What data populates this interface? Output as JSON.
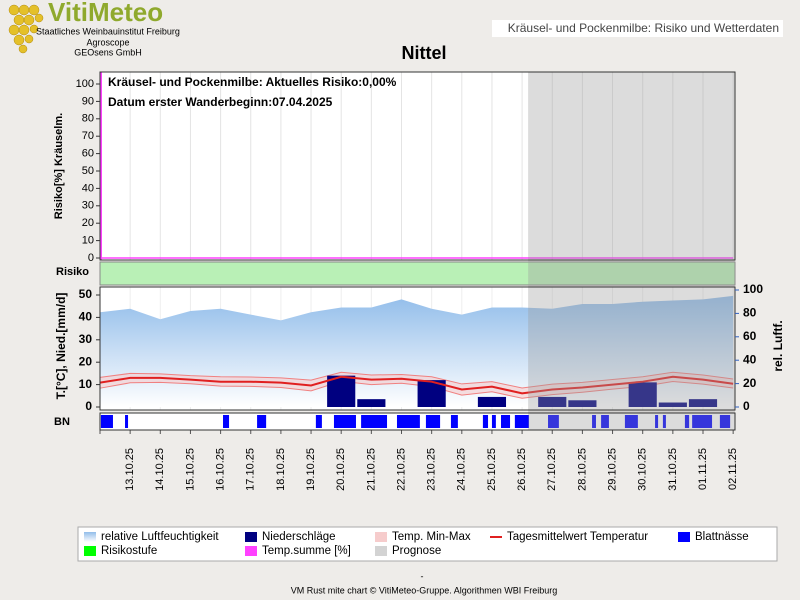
{
  "header": {
    "logo": "VitiMeteo",
    "lines": [
      "Staatliches Weinbauinstitut Freiburg",
      "Agroscope",
      "GEOsens GmbH"
    ],
    "caption": "Kräusel- und Pockenmilbe: Risiko und Wetterdaten"
  },
  "chart_data": {
    "type": "combo",
    "title": "Nittel",
    "annotations": [
      "Kräusel- und Pockenmilbe: Aktuelles Risiko:0,00%",
      "Datum erster Wanderbeginn:07.04.2025"
    ],
    "categories": [
      null,
      "13.10.25",
      "14.10.25",
      "15.10.25",
      "16.10.25",
      "17.10.25",
      "18.10.25",
      "19.10.25",
      "20.10.25",
      "21.10.25",
      "22.10.25",
      "23.10.25",
      "24.10.25",
      "25.10.25",
      "26.10.25",
      "27.10.25",
      "28.10.25",
      "29.10.25",
      "30.10.25",
      "31.10.25",
      "01.11.25",
      "02.11.25"
    ],
    "risk_ylabel": "Risiko[%] Kräuselm.",
    "risk_ylim": [
      0,
      100
    ],
    "risk_yticks": [
      0,
      10,
      20,
      30,
      40,
      50,
      60,
      70,
      80,
      90,
      100
    ],
    "band_label": "Risiko",
    "ylabel": "T.[°C], Nied.[mm/d]",
    "ylim": [
      0,
      50
    ],
    "yticks": [
      0,
      10,
      20,
      30,
      40,
      50
    ],
    "y2label": "rel. Luftf.",
    "y2lim": [
      0,
      100
    ],
    "y2ticks": [
      0,
      20,
      40,
      60,
      80,
      100
    ],
    "wetness_label": "BN",
    "series": [
      {
        "name": "relative Luftfeuchtigkeit",
        "color": "#a8c8ee",
        "axis": "y2",
        "values": [
          81,
          84,
          75,
          82,
          84,
          79,
          74,
          81,
          85,
          85,
          92,
          84,
          79,
          85,
          85,
          84,
          88,
          88,
          90,
          91,
          92,
          95
        ]
      },
      {
        "name": "Niederschläge",
        "color": "#000080",
        "values": [
          0,
          0,
          0,
          0,
          0,
          0,
          0,
          0,
          14,
          3.5,
          0,
          12,
          0,
          4.5,
          0,
          4.5,
          3,
          0,
          11,
          2,
          3.5,
          0
        ]
      },
      {
        "name": "Temp. Min-Max",
        "color": "#f6cccc",
        "max": [
          13.2,
          15,
          14.8,
          14,
          13.5,
          13.4,
          13,
          12,
          15.5,
          14.3,
          14.5,
          13.5,
          10.3,
          11.3,
          8.5,
          10.2,
          11,
          12.3,
          13.5,
          15.5,
          14.3,
          12.5
        ],
        "min": [
          8.4,
          10.8,
          11,
          10.4,
          9.3,
          9.2,
          8.7,
          7.2,
          11.5,
          10,
          10.6,
          9.1,
          5.3,
          6.8,
          3.9,
          5.5,
          6.6,
          8,
          9.2,
          11.4,
          10.2,
          8.5
        ]
      },
      {
        "name": "Tagesmittelwert Temperatur",
        "color": "#e02020",
        "values": [
          10.9,
          13,
          13,
          12.2,
          11.3,
          11.3,
          10.9,
          9.6,
          13.5,
          12.2,
          12.6,
          11.3,
          7.8,
          9.1,
          6.1,
          7.8,
          8.7,
          10,
          11.3,
          13.5,
          12.2,
          10.4
        ]
      },
      {
        "name": "Blattnässe",
        "color": "#0000ff",
        "intervals": [
          [
            0.03,
            0.43
          ],
          [
            0.83,
            0.93
          ],
          [
            4.08,
            4.28
          ],
          [
            5.21,
            5.51
          ],
          [
            7.16,
            7.36
          ],
          [
            7.76,
            8.49
          ],
          [
            8.66,
            9.52
          ],
          [
            9.85,
            10.61
          ],
          [
            10.81,
            11.28
          ],
          [
            11.64,
            11.87
          ],
          [
            12.7,
            12.87
          ],
          [
            13,
            13.13
          ],
          [
            13.3,
            13.6
          ],
          [
            13.76,
            14.23
          ],
          [
            14.86,
            15.22
          ],
          [
            16.32,
            16.45
          ],
          [
            16.62,
            16.88
          ],
          [
            17.41,
            17.84
          ],
          [
            18.41,
            18.51
          ],
          [
            18.67,
            18.77
          ],
          [
            19.4,
            19.54
          ],
          [
            19.64,
            20.3
          ],
          [
            20.56,
            20.9
          ]
        ]
      },
      {
        "name": "Risikostufe",
        "color": "#00ff00"
      },
      {
        "name": "Temp.summe [%]",
        "color": "#ff40ff",
        "values": [
          0,
          0,
          0,
          0,
          0,
          0,
          0,
          0,
          0,
          0,
          0,
          0,
          0,
          0,
          0,
          0,
          0,
          0,
          0,
          0,
          0,
          0
        ]
      },
      {
        "name": "Prognose",
        "color": "#d3d3d3",
        "from": 14.2
      }
    ]
  },
  "footer": {
    "dash": "-",
    "credit": "VM Rust mite chart © VitiMeteo-Gruppe. Algorithmen WBI Freiburg"
  }
}
